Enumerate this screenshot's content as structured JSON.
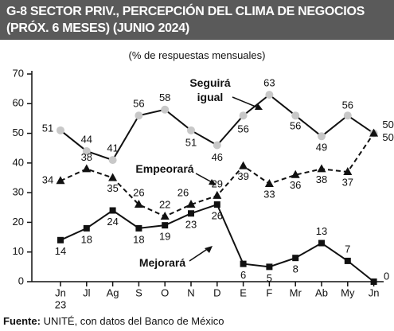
{
  "chart_data": {
    "type": "line",
    "title": "G-8 SECTOR PRIV., PERCEPCIÓN DEL CLIMA DE NEGOCIOS (PRÓX. 6 MESES) (JUNIO 2024)",
    "subtitle": "(% de respuestas mensuales)",
    "categories": [
      "Jn",
      "Jl",
      "Ag",
      "S",
      "O",
      "N",
      "D",
      "E",
      "F",
      "Mr",
      "Ab",
      "My",
      "Jn"
    ],
    "x_year_label": "23",
    "series": [
      {
        "name": "Seguirá igual",
        "color": "#111111",
        "marker_color": "#c8c8c8",
        "values": [
          51,
          44,
          41,
          56,
          58,
          51,
          46,
          56,
          63,
          56,
          49,
          56,
          50
        ]
      },
      {
        "name": "Empeorará",
        "color": "#111111",
        "marker_color": "#111111",
        "values": [
          34,
          38,
          35,
          26,
          22,
          26,
          29,
          39,
          33,
          36,
          38,
          37,
          50
        ]
      },
      {
        "name": "Mejorará",
        "color": "#111111",
        "marker_color": "#111111",
        "values": [
          14,
          18,
          24,
          18,
          19,
          23,
          26,
          6,
          5,
          8,
          13,
          7,
          0
        ]
      }
    ],
    "ylim": [
      0,
      70
    ],
    "yticks": [
      0,
      10,
      20,
      30,
      40,
      50,
      60,
      70
    ],
    "grid": false,
    "source_label": "Fuente:",
    "source": "UNITÉ, con datos del Banco de México"
  }
}
